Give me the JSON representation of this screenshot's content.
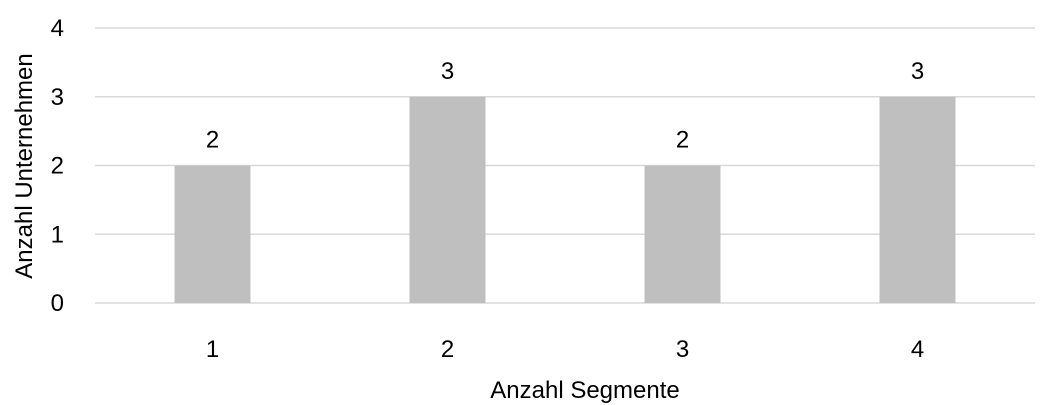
{
  "chart_data": {
    "type": "bar",
    "title": "",
    "xlabel": "Anzahl Segmente",
    "ylabel": "Anzahl Unternehmen",
    "categories": [
      "1",
      "2",
      "3",
      "4"
    ],
    "values": [
      2,
      3,
      2,
      3
    ],
    "data_labels": [
      "2",
      "3",
      "2",
      "3"
    ],
    "ylim": [
      0,
      4
    ],
    "yticks": [
      "0",
      "1",
      "2",
      "3",
      "4"
    ],
    "grid": true,
    "legend": "none",
    "bar_color": "#bfbfbf",
    "grid_color": "#d9d9d9"
  }
}
